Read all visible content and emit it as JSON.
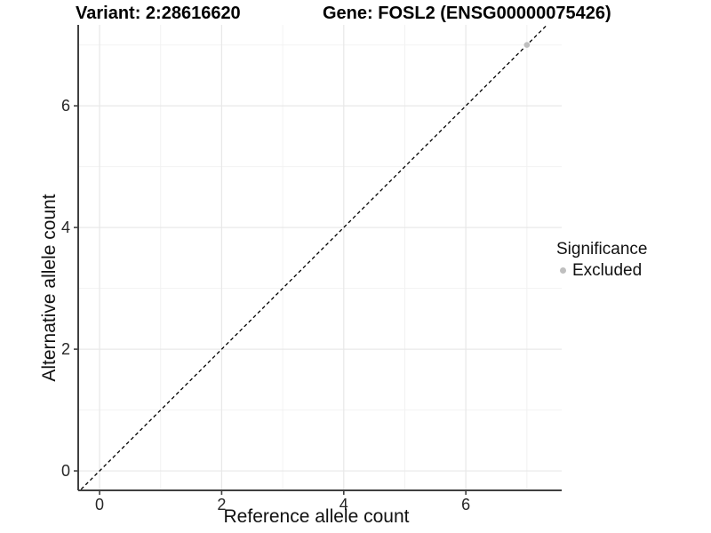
{
  "chart_data": {
    "type": "scatter",
    "title_left": "Variant: 2:28616620",
    "title_right": "Gene: FOSL2 (ENSG00000075426)",
    "xlabel": "Reference allele count",
    "ylabel": "Alternative allele count",
    "xlim": [
      -0.35,
      7.57
    ],
    "ylim": [
      -0.32,
      7.33
    ],
    "x_major_ticks": [
      0,
      2,
      4,
      6
    ],
    "y_major_ticks": [
      0,
      2,
      4,
      6
    ],
    "x_minor_gridlines": [
      1,
      3,
      5,
      7
    ],
    "y_minor_gridlines": [
      1,
      3,
      5,
      7
    ],
    "grid": "on",
    "legend_position": "right",
    "legend_title": "Significance",
    "identity_line": {
      "equation": "y = x",
      "style": "dashed",
      "color": "#000000"
    },
    "series": [
      {
        "name": "Excluded",
        "color": "#bfbfbf",
        "points": [
          {
            "x": 7,
            "y": 7
          }
        ]
      }
    ]
  },
  "colors": {
    "background": "#ffffff",
    "grid_major": "#e8e8e8",
    "grid_minor": "#f2f2f2",
    "axis_line": "#404040",
    "tick_label": "#262626",
    "title_text": "#000000",
    "axis_title_text": "#111111",
    "legend_text": "#111111"
  }
}
